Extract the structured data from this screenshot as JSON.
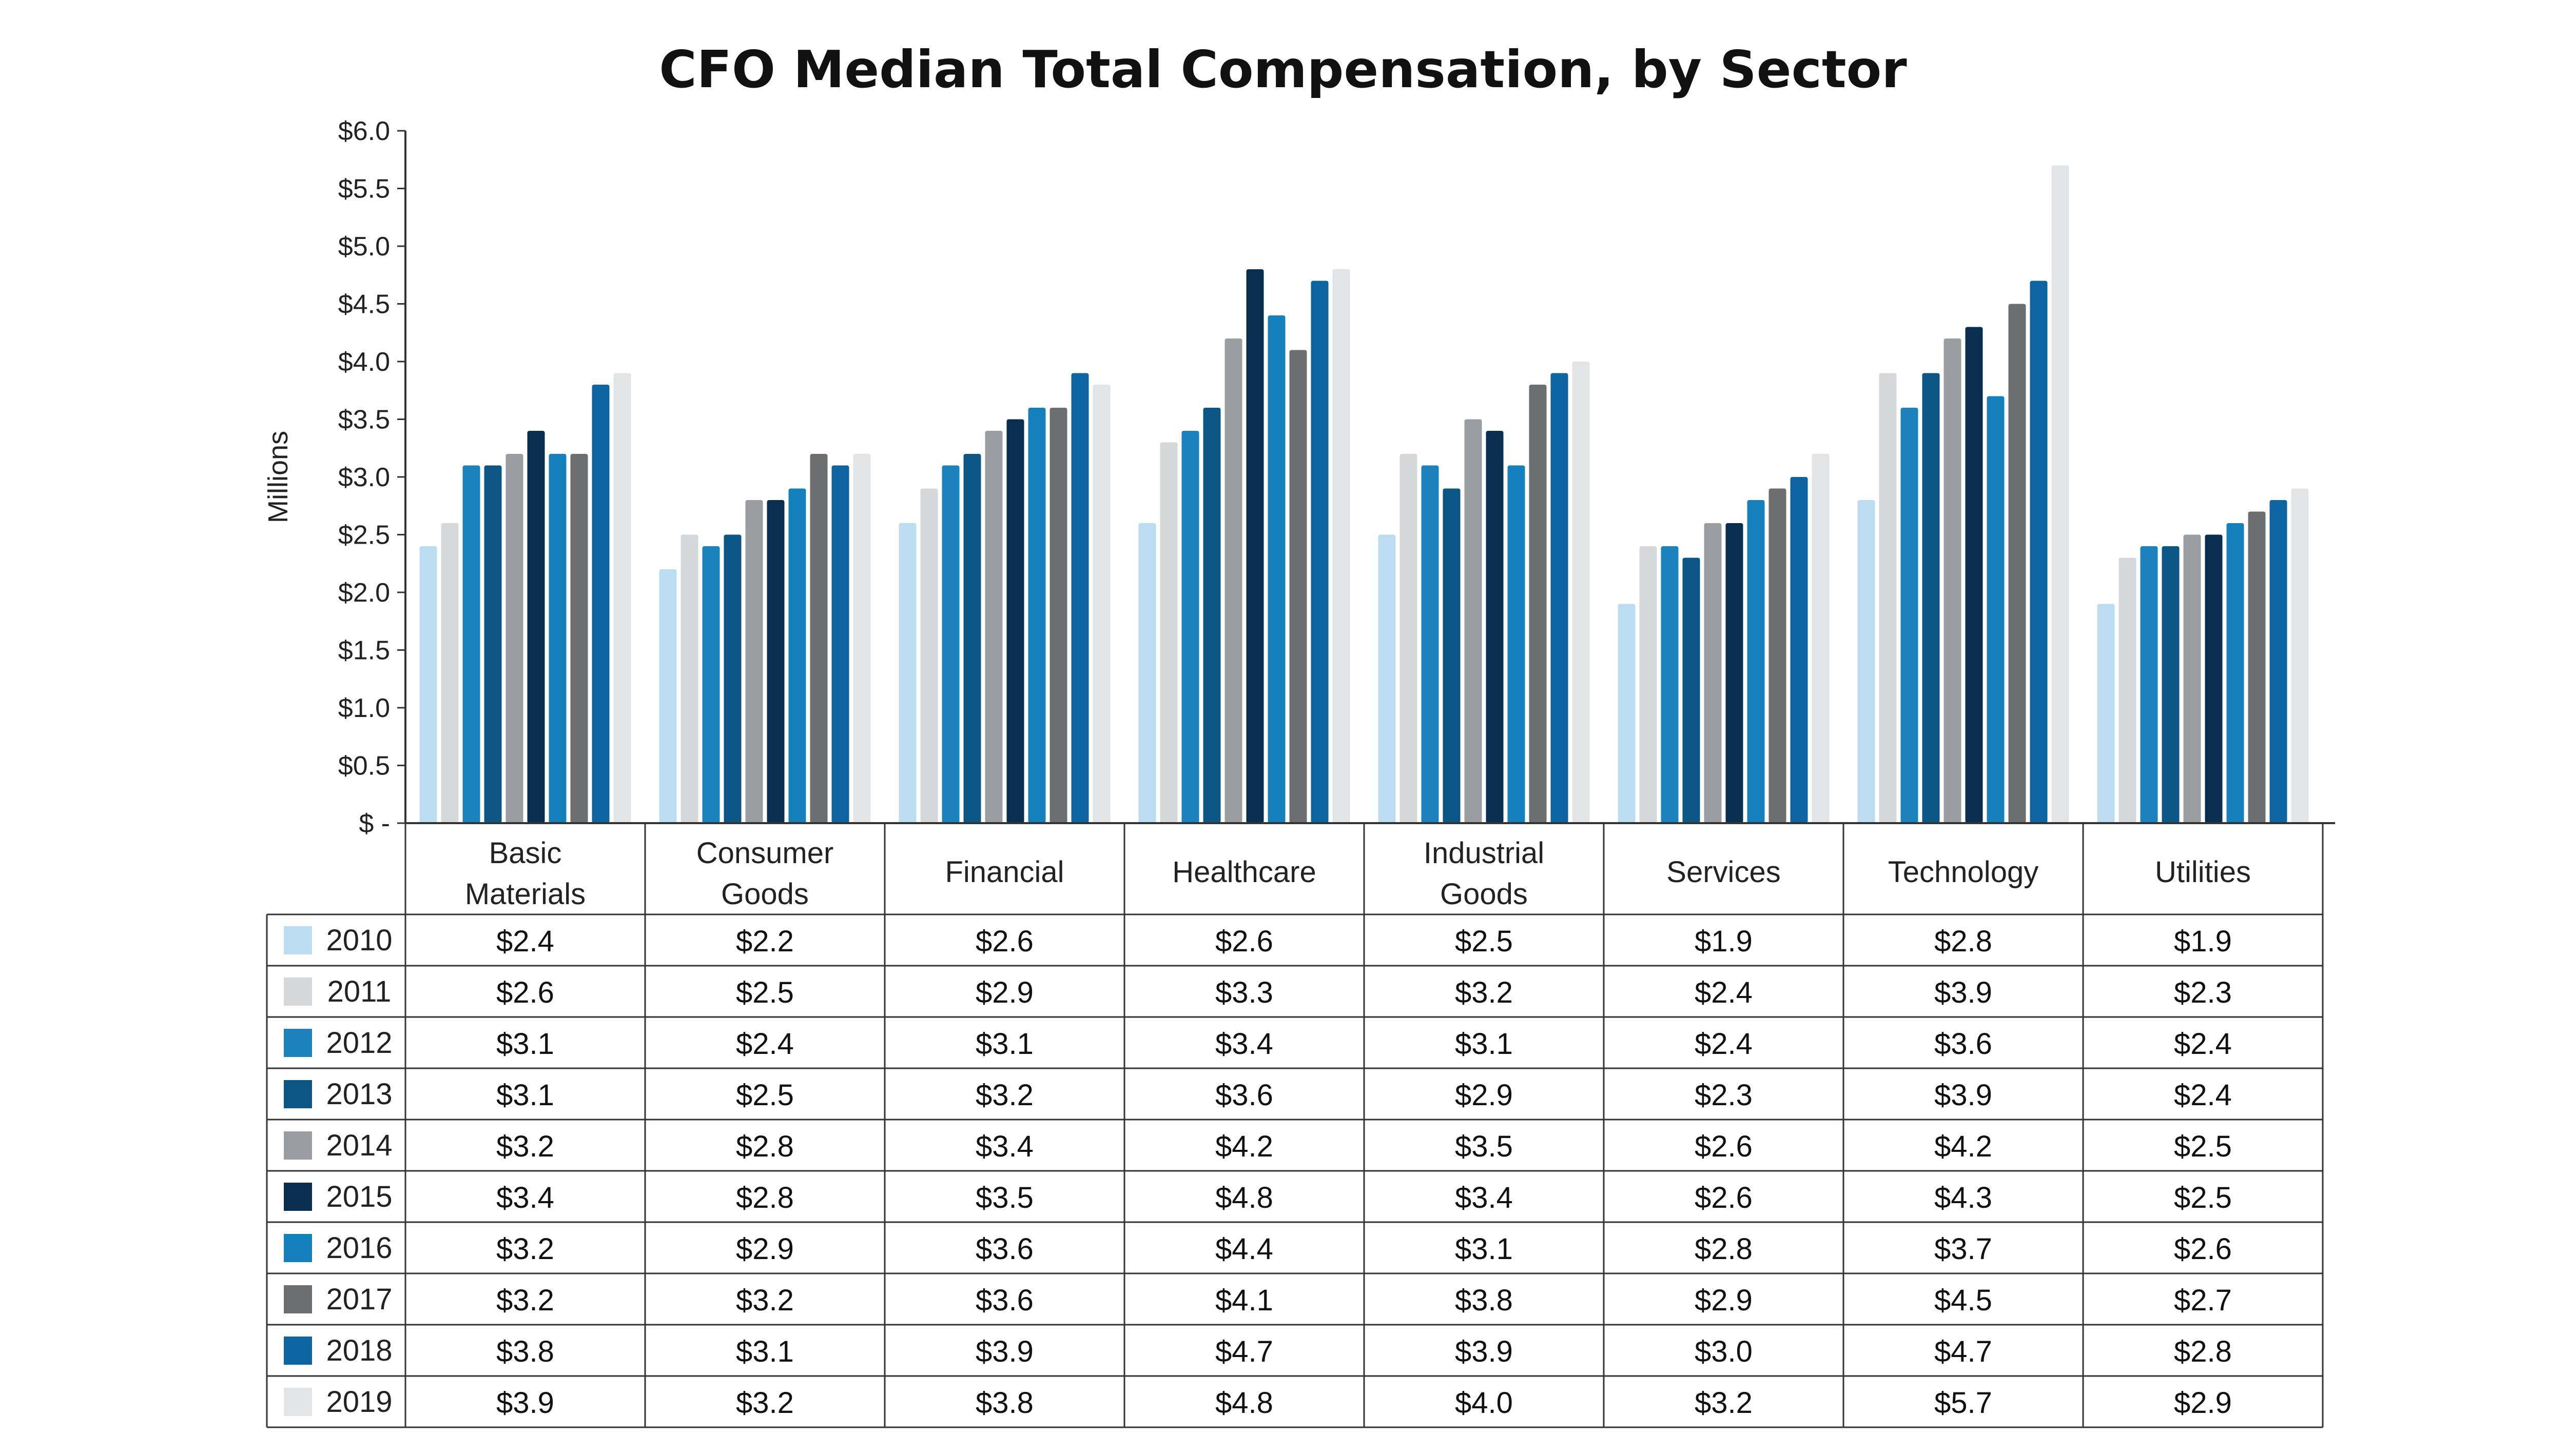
{
  "chart_data": {
    "type": "bar",
    "title": "CFO Median Total Compensation, by Sector",
    "ylabel": "Millions",
    "ylim": [
      0,
      6
    ],
    "yticks": [
      "$ -",
      "$0.5",
      "$1.0",
      "$1.5",
      "$2.0",
      "$2.5",
      "$3.0",
      "$3.5",
      "$4.0",
      "$4.5",
      "$5.0",
      "$5.5",
      "$6.0"
    ],
    "categories": [
      "Basic Materials",
      "Consumer Goods",
      "Financial",
      "Healthcare",
      "Industrial Goods",
      "Services",
      "Technology",
      "Utilities"
    ],
    "grid": false,
    "legend": "data-table-below",
    "series": [
      {
        "name": "2010",
        "color": "#bcdcf2",
        "values": [
          2.4,
          2.2,
          2.6,
          2.6,
          2.5,
          1.9,
          2.8,
          1.9
        ],
        "labels": [
          "$2.4",
          "$2.2",
          "$2.6",
          "$2.6",
          "$2.5",
          "$1.9",
          "$2.8",
          "$1.9"
        ]
      },
      {
        "name": "2011",
        "color": "#d6d7d9",
        "values": [
          2.6,
          2.5,
          2.9,
          3.3,
          3.2,
          2.4,
          3.9,
          2.3
        ],
        "labels": [
          "$2.6",
          "$2.5",
          "$2.9",
          "$3.3",
          "$3.2",
          "$2.4",
          "$3.9",
          "$2.3"
        ]
      },
      {
        "name": "2012",
        "color": "#1b82bd",
        "values": [
          3.1,
          2.4,
          3.1,
          3.4,
          3.1,
          2.4,
          3.6,
          2.4
        ],
        "labels": [
          "$3.1",
          "$2.4",
          "$3.1",
          "$3.4",
          "$3.1",
          "$2.4",
          "$3.6",
          "$2.4"
        ]
      },
      {
        "name": "2013",
        "color": "#0c5686",
        "values": [
          3.1,
          2.5,
          3.2,
          3.6,
          2.9,
          2.3,
          3.9,
          2.4
        ],
        "labels": [
          "$3.1",
          "$2.5",
          "$3.2",
          "$3.6",
          "$2.9",
          "$2.3",
          "$3.9",
          "$2.4"
        ]
      },
      {
        "name": "2014",
        "color": "#9a9da1",
        "values": [
          3.2,
          2.8,
          3.4,
          4.2,
          3.5,
          2.6,
          4.2,
          2.5
        ],
        "labels": [
          "$3.2",
          "$2.8",
          "$3.4",
          "$4.2",
          "$3.5",
          "$2.6",
          "$4.2",
          "$2.5"
        ]
      },
      {
        "name": "2015",
        "color": "#0a2e4f",
        "values": [
          3.4,
          2.8,
          3.5,
          4.8,
          3.4,
          2.6,
          4.3,
          2.5
        ],
        "labels": [
          "$3.4",
          "$2.8",
          "$3.5",
          "$4.8",
          "$3.4",
          "$2.6",
          "$4.3",
          "$2.5"
        ]
      },
      {
        "name": "2016",
        "color": "#1480bc",
        "values": [
          3.2,
          2.9,
          3.6,
          4.4,
          3.1,
          2.8,
          3.7,
          2.6
        ],
        "labels": [
          "$3.2",
          "$2.9",
          "$3.6",
          "$4.4",
          "$3.1",
          "$2.8",
          "$3.7",
          "$2.6"
        ]
      },
      {
        "name": "2017",
        "color": "#6c6e70",
        "values": [
          3.2,
          3.2,
          3.6,
          4.1,
          3.8,
          2.9,
          4.5,
          2.7
        ],
        "labels": [
          "$3.2",
          "$3.2",
          "$3.6",
          "$4.1",
          "$3.8",
          "$2.9",
          "$4.5",
          "$2.7"
        ]
      },
      {
        "name": "2018",
        "color": "#0e64a0",
        "values": [
          3.8,
          3.1,
          3.9,
          4.7,
          3.9,
          3.0,
          4.7,
          2.8
        ],
        "labels": [
          "$3.8",
          "$3.1",
          "$3.9",
          "$4.7",
          "$3.9",
          "$3.0",
          "$4.7",
          "$2.8"
        ]
      },
      {
        "name": "2019",
        "color": "#e3e4e5",
        "values": [
          3.9,
          3.2,
          3.8,
          4.8,
          4.0,
          3.2,
          5.7,
          2.9
        ],
        "labels": [
          "$3.9",
          "$3.2",
          "$3.8",
          "$4.8",
          "$4.0",
          "$3.2",
          "$5.7",
          "$2.9"
        ]
      }
    ]
  }
}
